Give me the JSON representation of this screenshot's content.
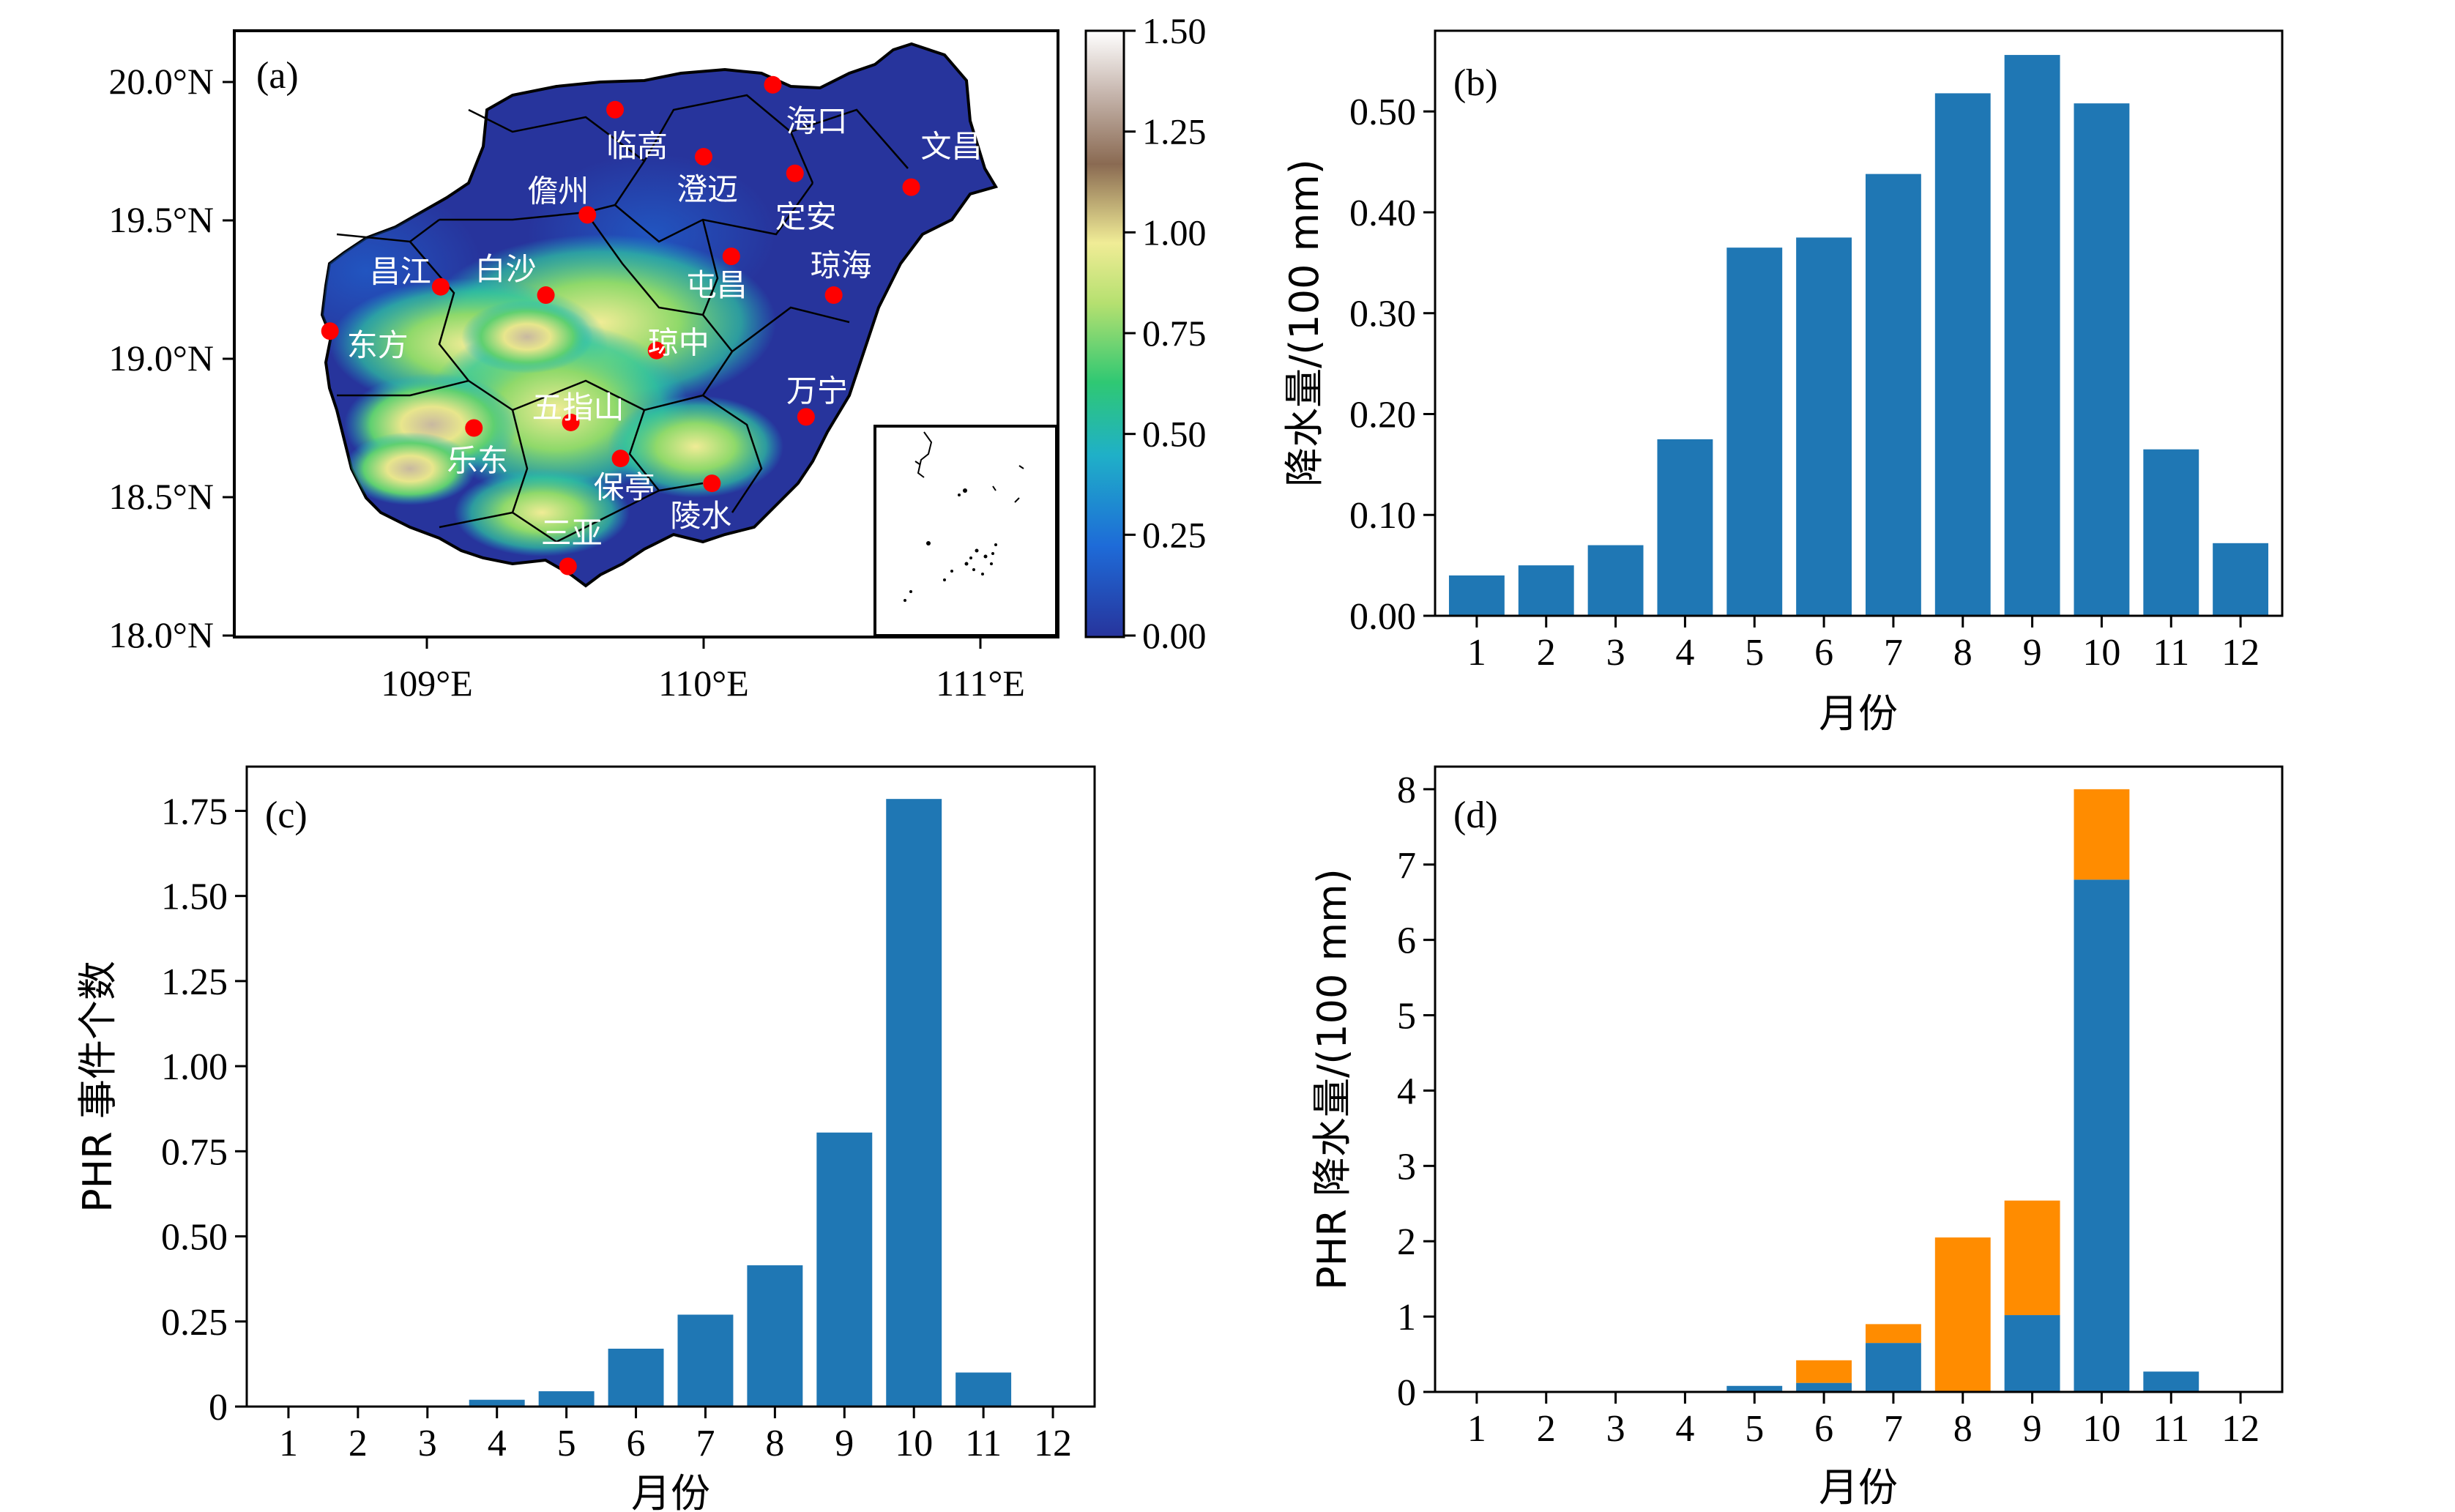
{
  "colors": {
    "bar": "#1f77b4",
    "bar_secondary": "#ff8c00",
    "station": "#ff0000",
    "land_low": "#27349c",
    "frame": "#000000"
  },
  "panel_a": {
    "label": "(a)",
    "lat_ticks": [
      "18.0°N",
      "18.5°N",
      "19.0°N",
      "19.5°N",
      "20.0°N"
    ],
    "lon_ticks": [
      "109°E",
      "110°E",
      "111°E"
    ],
    "colorbar_ticks": [
      "0.00",
      "0.25",
      "0.50",
      "0.75",
      "1.00",
      "1.25",
      "1.50"
    ],
    "colorbar_range": [
      0,
      1.5
    ],
    "stations": [
      {
        "name": "海口",
        "lon": 110.25,
        "lat": 19.99
      },
      {
        "name": "文昌",
        "lon": 110.75,
        "lat": 19.62
      },
      {
        "name": "临高",
        "lon": 109.68,
        "lat": 19.9
      },
      {
        "name": "澄迈",
        "lon": 110.0,
        "lat": 19.73
      },
      {
        "name": "定安",
        "lon": 110.33,
        "lat": 19.67
      },
      {
        "name": "儋州",
        "lon": 109.58,
        "lat": 19.52
      },
      {
        "name": "琼海",
        "lon": 110.47,
        "lat": 19.23
      },
      {
        "name": "屯昌",
        "lon": 110.1,
        "lat": 19.37
      },
      {
        "name": "昌江",
        "lon": 109.05,
        "lat": 19.26
      },
      {
        "name": "白沙",
        "lon": 109.43,
        "lat": 19.23
      },
      {
        "name": "东方",
        "lon": 108.65,
        "lat": 19.1
      },
      {
        "name": "琼中",
        "lon": 109.83,
        "lat": 19.03
      },
      {
        "name": "万宁",
        "lon": 110.37,
        "lat": 18.79
      },
      {
        "name": "五指山",
        "lon": 109.52,
        "lat": 18.77
      },
      {
        "name": "乐东",
        "lon": 109.17,
        "lat": 18.75
      },
      {
        "name": "保亭",
        "lon": 109.7,
        "lat": 18.64
      },
      {
        "name": "陵水",
        "lon": 110.03,
        "lat": 18.55
      },
      {
        "name": "三亚",
        "lon": 109.51,
        "lat": 18.25
      }
    ]
  },
  "chart_data": [
    {
      "panel": "b",
      "type": "bar",
      "label": "(b)",
      "categories": [
        "1",
        "2",
        "3",
        "4",
        "5",
        "6",
        "7",
        "8",
        "9",
        "10",
        "11",
        "12"
      ],
      "values": [
        0.04,
        0.05,
        0.07,
        0.175,
        0.365,
        0.375,
        0.438,
        0.518,
        0.556,
        0.508,
        0.165,
        0.072
      ],
      "ylim": [
        0,
        0.58
      ],
      "yticks": [
        "0.00",
        "0.10",
        "0.20",
        "0.30",
        "0.40",
        "0.50"
      ],
      "xlabel": "月份",
      "ylabel": "降水量/(100 mm)"
    },
    {
      "panel": "c",
      "type": "bar",
      "label": "(c)",
      "categories": [
        "1",
        "2",
        "3",
        "4",
        "5",
        "6",
        "7",
        "8",
        "9",
        "10",
        "11",
        "12"
      ],
      "values": [
        0,
        0,
        0,
        0.02,
        0.045,
        0.17,
        0.27,
        0.415,
        0.805,
        1.785,
        0.1,
        0
      ],
      "ylim": [
        0,
        1.88
      ],
      "yticks": [
        "0",
        "0.25",
        "0.50",
        "0.75",
        "1.00",
        "1.25",
        "1.50",
        "1.75"
      ],
      "xlabel": "月份",
      "ylabel": "PHR 事件个数"
    },
    {
      "panel": "d",
      "type": "bar",
      "stacked": true,
      "label": "(d)",
      "categories": [
        "1",
        "2",
        "3",
        "4",
        "5",
        "6",
        "7",
        "8",
        "9",
        "10",
        "11",
        "12"
      ],
      "series": [
        {
          "values": [
            0,
            0,
            0,
            0,
            0.08,
            0.12,
            0.65,
            0,
            1.02,
            6.8,
            0.27,
            0
          ]
        },
        {
          "values": [
            0,
            0,
            0,
            0,
            0,
            0.3,
            0.25,
            2.05,
            1.52,
            1.2,
            0,
            0
          ]
        }
      ],
      "ylim": [
        0,
        8.3
      ],
      "yticks": [
        "0",
        "1",
        "2",
        "3",
        "4",
        "5",
        "6",
        "7",
        "8"
      ],
      "xlabel": "月份",
      "ylabel": "PHR 降水量/(100 mm)"
    }
  ]
}
